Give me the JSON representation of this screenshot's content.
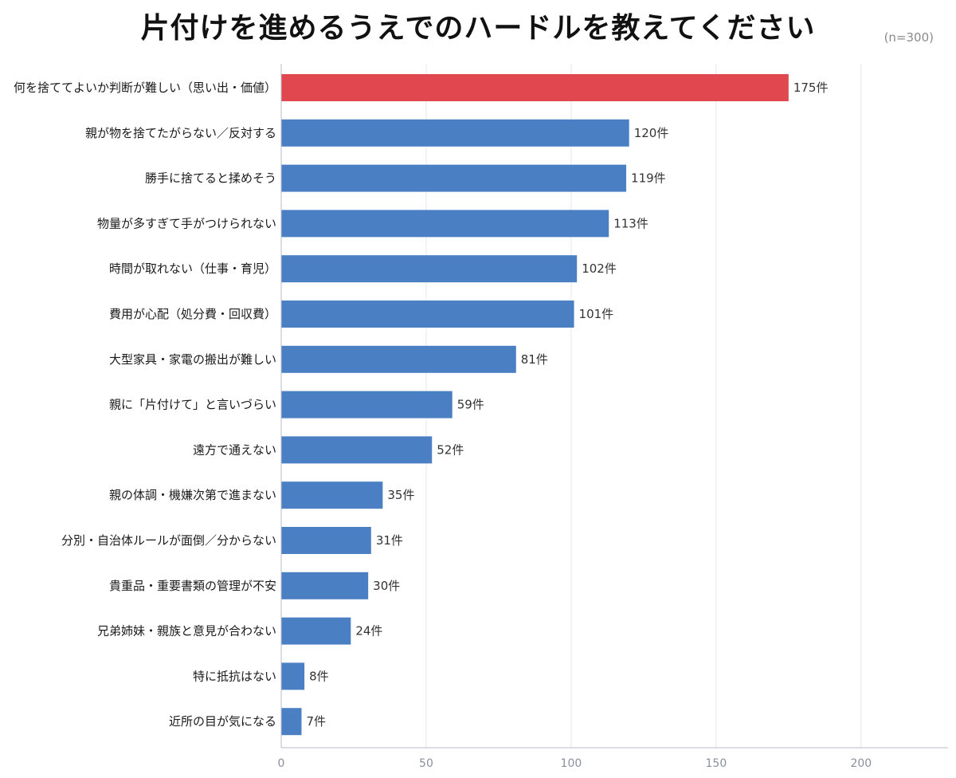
{
  "chart_data": {
    "type": "bar",
    "orientation": "horizontal",
    "title": "片付けを進めるうえでのハードルを教えてください",
    "note": "(n=300)",
    "value_suffix": "件",
    "categories": [
      "何を捨ててよいか判断が難しい（思い出・価値）",
      "親が物を捨てたがらない／反対する",
      "勝手に捨てると揉めそう",
      "物量が多すぎて手がつけられない",
      "時間が取れない（仕事・育児）",
      "費用が心配（処分費・回収費）",
      "大型家具・家電の搬出が難しい",
      "親に「片付けて」と言いづらい",
      "遠方で通えない",
      "親の体調・機嫌次第で進まない",
      "分別・自治体ルールが面倒／分からない",
      "貴重品・重要書類の管理が不安",
      "兄弟姉妹・親族と意見が合わない",
      "特に抵抗はない",
      "近所の目が気になる"
    ],
    "values": [
      175,
      120,
      119,
      113,
      102,
      101,
      81,
      59,
      52,
      35,
      31,
      30,
      24,
      8,
      7
    ],
    "value_labels": [
      "175件",
      "120件",
      "119件",
      "113件",
      "102件",
      "101件",
      "81件",
      "59件",
      "52件",
      "35件",
      "31件",
      "30件",
      "24件",
      "8件",
      "7件"
    ],
    "highlight_index": 0,
    "xlim": [
      0,
      230
    ],
    "xticks": [
      0,
      50,
      100,
      150,
      200
    ],
    "xtick_labels": [
      "0",
      "50",
      "100",
      "150",
      "200"
    ],
    "grid": "vertical",
    "colors": {
      "bar": "#4a7fc4",
      "highlight": "#e0474f"
    }
  }
}
